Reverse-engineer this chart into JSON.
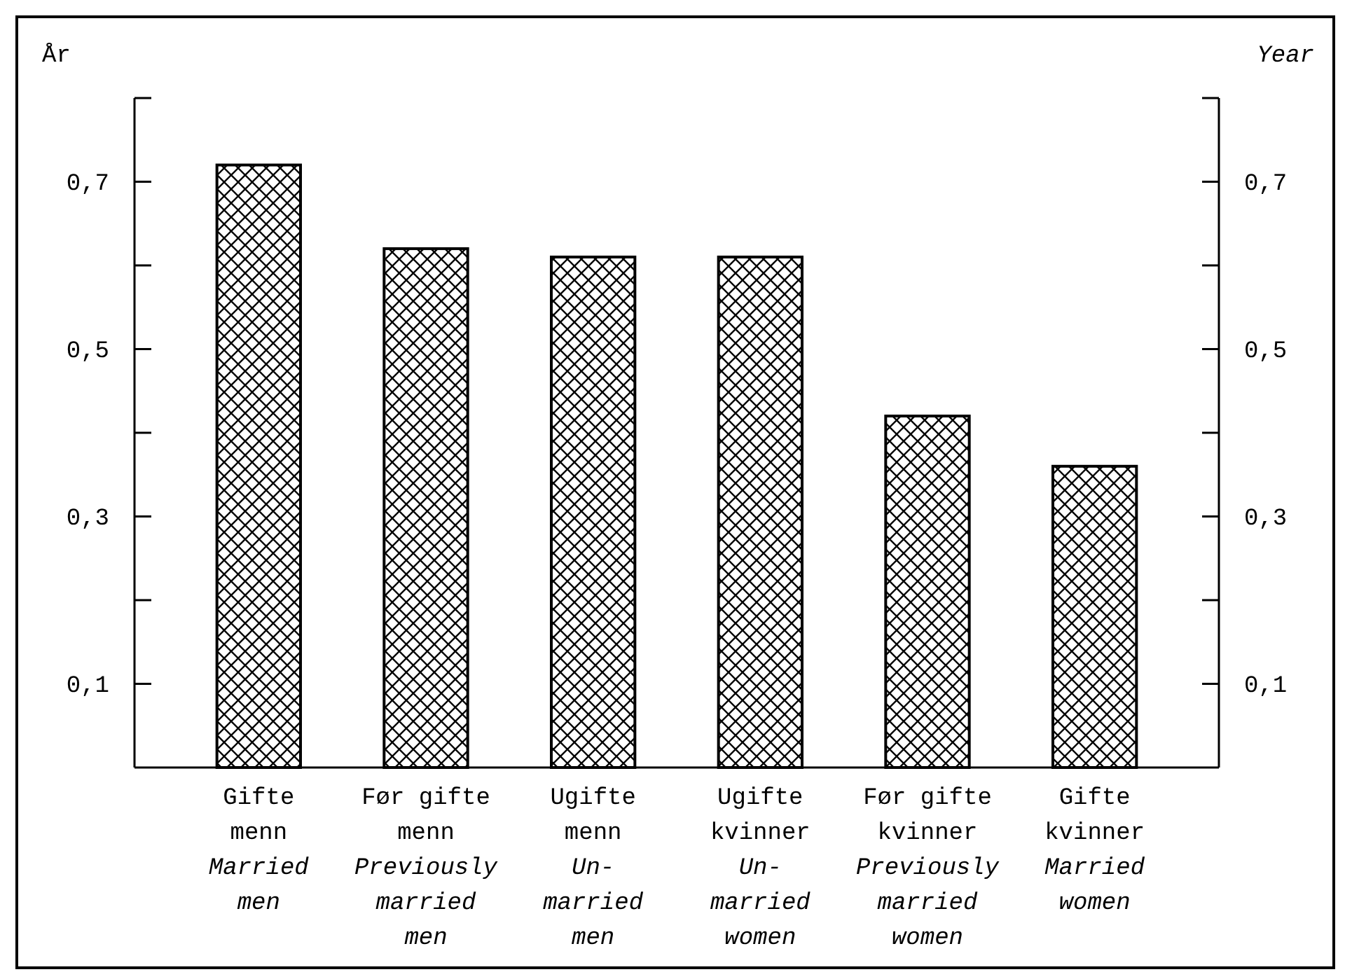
{
  "chart_data": {
    "type": "bar",
    "ylabel": "År",
    "y2label": "Year",
    "categories": [
      "Gifte menn\nMarried men",
      "Før gifte menn\nPreviously married men",
      "Ugifte menn\nUn-married men",
      "Ugifte kvinner\nUn-married women",
      "Før gifte kvinner\nPreviously married women",
      "Gifte kvinner\nMarried women"
    ],
    "values": [
      0.72,
      0.62,
      0.61,
      0.61,
      0.42,
      0.36
    ],
    "color": "#000000",
    "ylim": [
      0,
      0.8
    ],
    "yticks": [
      {
        "value": 0.1,
        "label": "0,1"
      },
      {
        "value": 0.2,
        "label": null
      },
      {
        "value": 0.3,
        "label": "0,3"
      },
      {
        "value": 0.4,
        "label": null
      },
      {
        "value": 0.5,
        "label": "0,5"
      },
      {
        "value": 0.6,
        "label": null
      },
      {
        "value": 0.7,
        "label": "0,7"
      },
      {
        "value": 0.8,
        "label": null
      }
    ],
    "y2lim": [
      0,
      0.8
    ],
    "y2ticks": [
      {
        "value": 0.1,
        "label": "0,1"
      },
      {
        "value": 0.2,
        "label": null
      },
      {
        "value": 0.3,
        "label": "0,3"
      },
      {
        "value": 0.4,
        "label": null
      },
      {
        "value": 0.5,
        "label": "0,5"
      },
      {
        "value": 0.6,
        "label": null
      },
      {
        "value": 0.7,
        "label": "0,7"
      },
      {
        "value": 0.8,
        "label": null
      }
    ],
    "grid": false
  }
}
